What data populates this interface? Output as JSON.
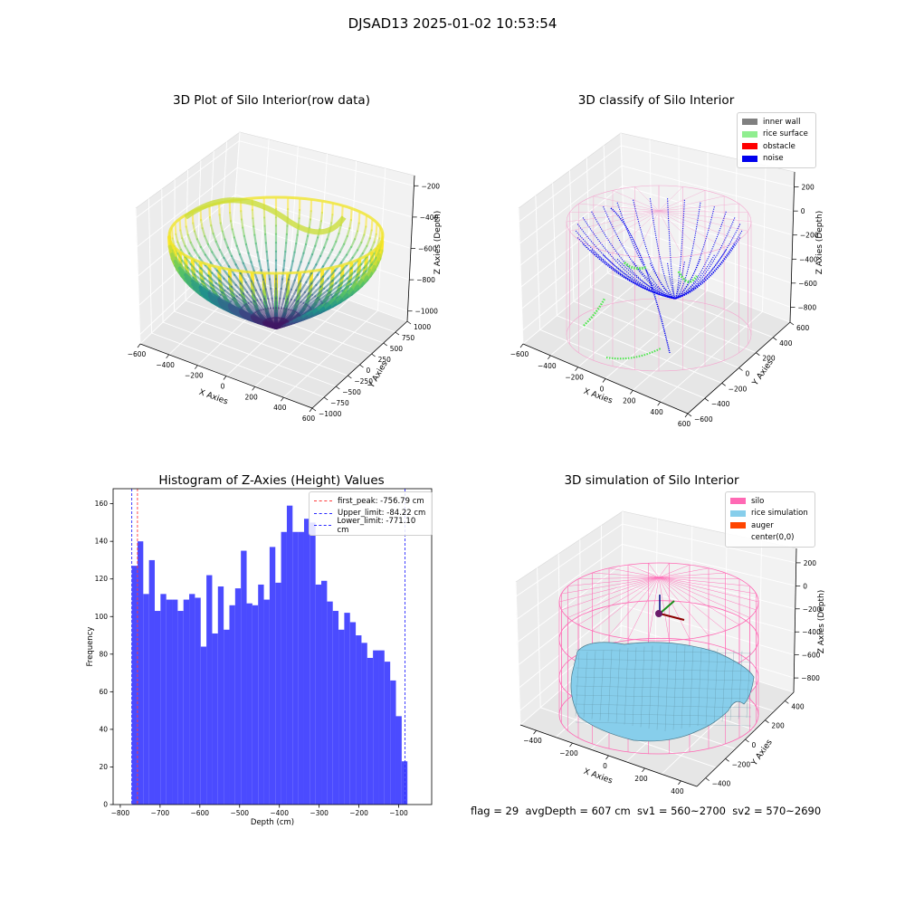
{
  "figure": {
    "suptitle": "DJSAD13 2025-01-02 10:53:54",
    "footer": "flag = 29  avgDepth = 607 cm  sv1 = 560~2700  sv2 = 570~2690"
  },
  "colors": {
    "hist_bar": "#4b4bff",
    "peak_line": "#ff3b3b",
    "limit_line": "#2a2aff",
    "inner_wall": "#808080",
    "rice_surface": "#90ee90",
    "obstacle": "#ff0000",
    "noise": "#0000ee",
    "silo": "#ff69b4",
    "rice_simulation": "#87ceeb",
    "auger": "#ff4500"
  },
  "chart_data": [
    {
      "type": "scatter3d",
      "title": "3D Plot of Silo Interior(row data)",
      "xlabel": "X Axies",
      "ylabel": "Y Axies",
      "zlabel": "Z Axies (Depth)",
      "xlim": [
        -600,
        600
      ],
      "ylim": [
        -1000,
        1000
      ],
      "zlim": [
        -1100,
        -100
      ],
      "xticks": [
        "−600",
        "−400",
        "−200",
        "0",
        "200",
        "400",
        "600"
      ],
      "yticks": [
        "−1000",
        "−750",
        "−500",
        "−250",
        "0",
        "250",
        "500",
        "750",
        "1000"
      ],
      "zticks": [
        "−1000",
        "−800",
        "−600",
        "−400",
        "−200"
      ],
      "colormap": "viridis"
    },
    {
      "type": "scatter3d",
      "title": "3D classify of Silo Interior",
      "xlabel": "X Axies",
      "ylabel": "Y Axies",
      "zlabel": "Z Axies (Depth)",
      "xlim": [
        -600,
        600
      ],
      "ylim": [
        -600,
        600
      ],
      "zlim": [
        -900,
        300
      ],
      "xticks": [
        "−600",
        "−400",
        "−200",
        "0",
        "200",
        "400",
        "600"
      ],
      "yticks": [
        "−600",
        "−400",
        "−200",
        "0",
        "200",
        "400",
        "600"
      ],
      "zticks": [
        "−800",
        "−600",
        "−400",
        "−200",
        "0",
        "200"
      ],
      "legend": [
        "inner wall",
        "rice surface",
        "obstacle",
        "noise"
      ],
      "legend_position": "top-right"
    },
    {
      "type": "bar",
      "title": "Histogram of Z-Axies (Height) Values",
      "xlabel": "Depth (cm)",
      "ylabel": "Frequency",
      "xlim": [
        -818,
        -17
      ],
      "ylim": [
        0,
        168
      ],
      "xticks": [
        -800,
        -700,
        -600,
        -500,
        -400,
        -300,
        -200,
        -100
      ],
      "xtick_labels": [
        "−800",
        "−700",
        "−600",
        "−500",
        "−400",
        "−300",
        "−200",
        "−100"
      ],
      "yticks": [
        0,
        20,
        40,
        60,
        80,
        100,
        120,
        140,
        160
      ],
      "bin_start": -771.1,
      "bin_width": 14.44,
      "values": [
        127,
        140,
        112,
        130,
        103,
        112,
        109,
        109,
        103,
        109,
        112,
        110,
        84,
        122,
        91,
        116,
        93,
        106,
        115,
        135,
        107,
        106,
        117,
        109,
        137,
        118,
        145,
        159,
        145,
        145,
        152,
        150,
        117,
        119,
        108,
        103,
        93,
        102,
        97,
        90,
        86,
        78,
        82,
        82,
        76,
        66,
        47,
        23
      ],
      "lines": [
        {
          "label": "first_peak: -756.79 cm",
          "value": -756.79,
          "color": "#ff3b3b"
        },
        {
          "label": "Upper_limit: -84.22 cm",
          "value": -84.22,
          "color": "#2a2aff"
        },
        {
          "label": "Lower_limit: -771.10 cm",
          "value": -771.1,
          "color": "#2a2aff"
        }
      ],
      "legend_position": "top-right"
    },
    {
      "type": "surface3d",
      "title": "3D simulation of Silo Interior",
      "xlabel": "X Axies",
      "ylabel": "Y Axies",
      "zlabel": "Z Axies (Depth)",
      "xlim": [
        -600,
        600
      ],
      "ylim": [
        -600,
        600
      ],
      "zlim": [
        -900,
        300
      ],
      "xticks": [
        "−400",
        "−200",
        "0",
        "200",
        "400"
      ],
      "yticks": [
        "−400",
        "−200",
        "0",
        "200",
        "400"
      ],
      "zticks": [
        "−800",
        "−600",
        "−400",
        "−200",
        "0",
        "200"
      ],
      "legend": [
        "silo",
        "rice simulation",
        "auger",
        "center(0,0)"
      ],
      "legend_position": "top-right"
    }
  ]
}
